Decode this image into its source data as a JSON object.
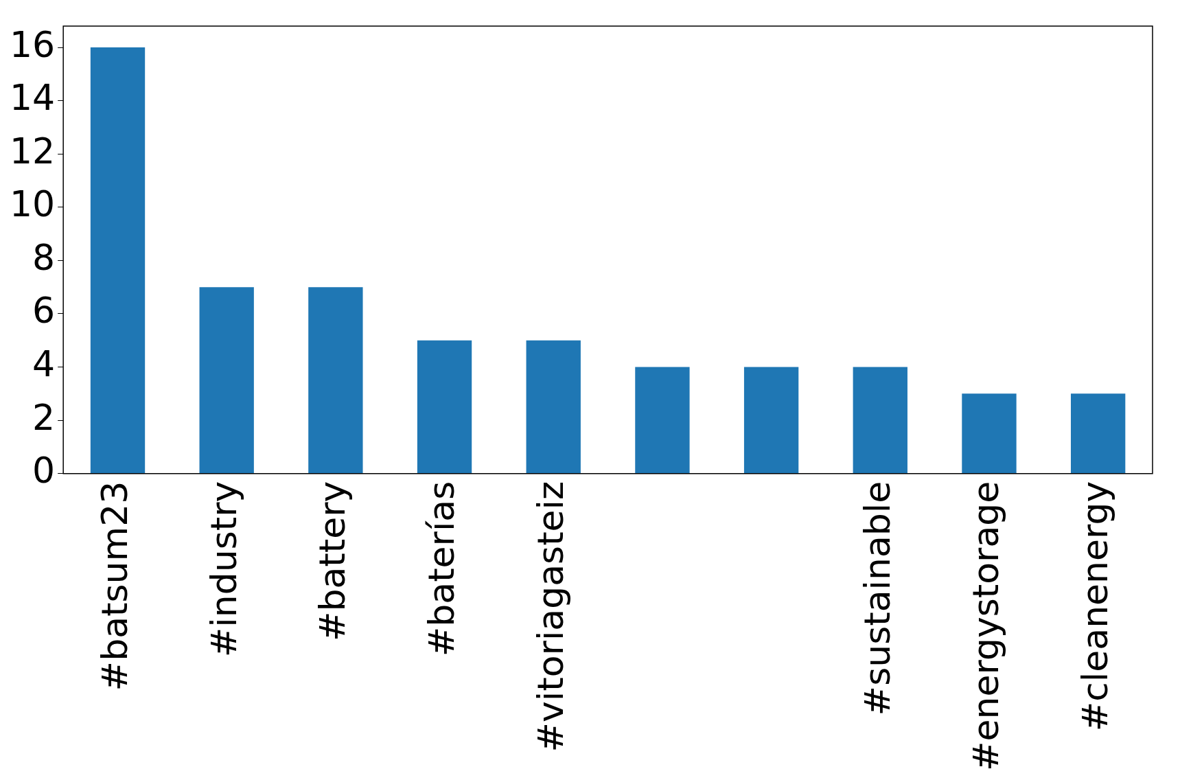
{
  "chart_data": {
    "type": "bar",
    "categories": [
      "#batsum23",
      "#industry",
      "#battery",
      "#baterías",
      "#vitoriagasteiz",
      null,
      null,
      "#sustainable",
      "#energystorage",
      "#cleanenergy"
    ],
    "values": [
      16,
      7,
      7,
      5,
      5,
      4,
      4,
      4,
      3,
      3
    ],
    "color": "#1f77b4",
    "ylim": [
      0,
      16.8
    ],
    "yticks": [
      0,
      2,
      4,
      6,
      8,
      10,
      12,
      14,
      16
    ],
    "grid": false,
    "legend": false
  }
}
